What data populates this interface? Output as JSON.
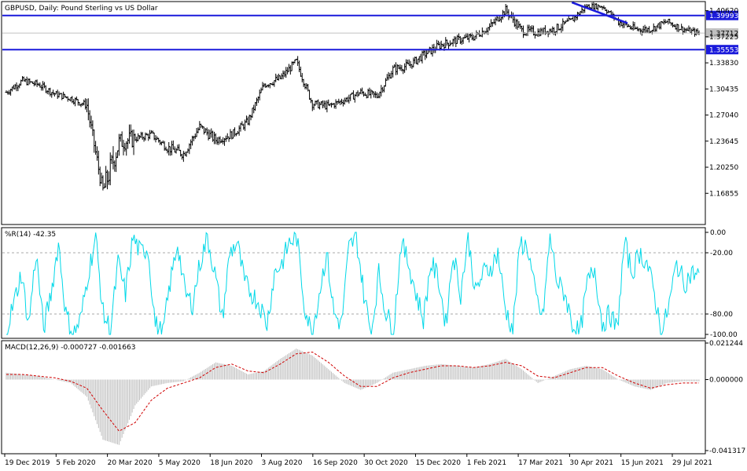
{
  "chart_data": [
    {
      "type": "candlestick",
      "title": "GBPUSD, Daily:  Pound Sterling vs US Dollar",
      "ylim": [
        1.13,
        1.416
      ],
      "y_ticks": [
        "1.40620",
        "1.37225",
        "1.33830",
        "1.30435",
        "1.27040",
        "1.23645",
        "1.20250",
        "1.16855"
      ],
      "horizontal_lines": [
        {
          "label": "1.39993",
          "value": 1.39993,
          "color": "#1a1adb"
        },
        {
          "label": "1.35553",
          "value": 1.35553,
          "color": "#1a1adb"
        }
      ],
      "current_price": {
        "label": "1.37712",
        "value": 1.37712
      },
      "trend_line": {
        "from": {
          "date": "2021-04-30",
          "value": 1.417
        },
        "to": {
          "date": "2021-06-18",
          "value": 1.39
        },
        "color": "#1a1adb"
      },
      "x": [
        "2019-12-19",
        "2020-01-02",
        "2020-01-16",
        "2020-02-05",
        "2020-02-19",
        "2020-03-05",
        "2020-03-19",
        "2020-03-26",
        "2020-04-09",
        "2020-04-23",
        "2020-05-05",
        "2020-05-19",
        "2020-06-01",
        "2020-06-18",
        "2020-07-02",
        "2020-07-16",
        "2020-08-03",
        "2020-08-17",
        "2020-08-31",
        "2020-09-08",
        "2020-09-16",
        "2020-09-30",
        "2020-10-14",
        "2020-10-30",
        "2020-11-13",
        "2020-11-27",
        "2020-12-15",
        "2020-12-29",
        "2021-01-12",
        "2021-01-26",
        "2021-02-05",
        "2021-02-24",
        "2021-03-17",
        "2021-03-31",
        "2021-04-14",
        "2021-04-30",
        "2021-05-14",
        "2021-05-28",
        "2021-06-15",
        "2021-06-29",
        "2021-07-13",
        "2021-07-29",
        "2021-08-12",
        "2021-08-20"
      ],
      "close": [
        1.3,
        1.315,
        1.31,
        1.298,
        1.292,
        1.283,
        1.17,
        1.235,
        1.24,
        1.245,
        1.228,
        1.22,
        1.255,
        1.238,
        1.245,
        1.262,
        1.31,
        1.318,
        1.34,
        1.285,
        1.282,
        1.29,
        1.3,
        1.295,
        1.33,
        1.335,
        1.35,
        1.362,
        1.368,
        1.372,
        1.385,
        1.407,
        1.38,
        1.378,
        1.382,
        1.392,
        1.412,
        1.412,
        1.392,
        1.382,
        1.382,
        1.392,
        1.382,
        1.377
      ],
      "high": [
        1.316,
        1.325,
        1.32,
        1.31,
        1.3,
        1.3,
        1.22,
        1.252,
        1.26,
        1.255,
        1.245,
        1.24,
        1.275,
        1.258,
        1.262,
        1.275,
        1.325,
        1.335,
        1.352,
        1.3,
        1.295,
        1.305,
        1.315,
        1.312,
        1.345,
        1.35,
        1.365,
        1.375,
        1.38,
        1.385,
        1.4,
        1.418,
        1.398,
        1.395,
        1.395,
        1.412,
        1.419,
        1.418,
        1.402,
        1.398,
        1.392,
        1.402,
        1.392,
        1.387
      ],
      "low": [
        1.292,
        1.3,
        1.297,
        1.285,
        1.28,
        1.27,
        1.145,
        1.15,
        1.232,
        1.233,
        1.212,
        1.205,
        1.24,
        1.225,
        1.232,
        1.248,
        1.296,
        1.306,
        1.325,
        1.27,
        1.27,
        1.28,
        1.288,
        1.282,
        1.315,
        1.322,
        1.335,
        1.345,
        1.352,
        1.358,
        1.37,
        1.392,
        1.365,
        1.368,
        1.37,
        1.38,
        1.402,
        1.4,
        1.38,
        1.365,
        1.37,
        1.378,
        1.37,
        1.368
      ],
      "xlabels": [
        "19 Dec 2019",
        "5 Feb 2020",
        "20 Mar 2020",
        "5 May 2020",
        "18 Jun 2020",
        "3 Aug 2020",
        "16 Sep 2020",
        "30 Oct 2020",
        "15 Dec 2020",
        "1 Feb 2021",
        "17 Mar 2021",
        "30 Apr 2021",
        "15 Jun 2021",
        "29 Jul 2021"
      ]
    },
    {
      "type": "line",
      "title": "%R(14) -42.35",
      "ylim": [
        -100,
        0
      ],
      "y_ticks": [
        "0.00",
        "-20.00",
        "-80.00",
        "-100.00"
      ],
      "levels": [
        -20,
        -80
      ],
      "series": [
        {
          "color": "#00d8e8",
          "values": [
            -95,
            -70,
            -40,
            -90,
            -20,
            -95,
            -60,
            -10,
            -80,
            -100,
            -85,
            -40,
            -5,
            -80,
            -95,
            -30,
            -60,
            -5,
            -20,
            -15,
            -90,
            -100,
            -50,
            -10,
            -60,
            -70,
            -30,
            -5,
            -40,
            -85,
            -20,
            -10,
            -50,
            -60,
            -70,
            -90,
            -40,
            -30,
            -10,
            -5,
            -70,
            -100,
            -60,
            -20,
            -80,
            -90,
            -15,
            -5,
            -60,
            -100,
            -40,
            -80,
            -95,
            -10,
            -30,
            -60,
            -85,
            -30,
            -45,
            -90,
            -20,
            -60,
            -5,
            -60,
            -40,
            -35,
            -20,
            -75,
            -95,
            -10,
            -15,
            -60,
            -85,
            -5,
            -50,
            -60,
            -90,
            -100,
            -50,
            -35,
            -90,
            -80,
            -95,
            -10,
            -40,
            -20,
            -30,
            -60,
            -100,
            -70,
            -30,
            -50,
            -40,
            -42
          ]
        }
      ]
    },
    {
      "type": "histogram+line",
      "title": "MACD(12,26,9) -0.000727 -0.001663",
      "ylim": [
        -0.041317,
        0.021244
      ],
      "y_ticks": [
        "0.021244",
        "0.000000",
        "-0.041317"
      ],
      "series": [
        {
          "name": "MACD",
          "color": "#bdbdbd",
          "values": [
            0.004,
            0.003,
            0.002,
            0.0,
            -0.002,
            -0.01,
            -0.035,
            -0.038,
            -0.015,
            -0.004,
            -0.002,
            -0.001,
            0.004,
            0.01,
            0.008,
            0.003,
            0.005,
            0.012,
            0.018,
            0.014,
            0.006,
            -0.002,
            -0.006,
            -0.002,
            0.004,
            0.006,
            0.008,
            0.009,
            0.008,
            0.007,
            0.009,
            0.012,
            0.006,
            -0.002,
            0.002,
            0.006,
            0.008,
            0.006,
            0.0,
            -0.004,
            -0.006,
            -0.002,
            -0.001,
            -0.001
          ]
        },
        {
          "name": "Signal",
          "color": "#d00000",
          "values": [
            0.003,
            0.003,
            0.002,
            0.001,
            -0.001,
            -0.005,
            -0.018,
            -0.03,
            -0.025,
            -0.012,
            -0.005,
            -0.002,
            0.001,
            0.007,
            0.009,
            0.005,
            0.004,
            0.009,
            0.015,
            0.016,
            0.01,
            0.002,
            -0.004,
            -0.004,
            0.001,
            0.004,
            0.006,
            0.008,
            0.008,
            0.007,
            0.008,
            0.01,
            0.008,
            0.002,
            0.001,
            0.004,
            0.007,
            0.007,
            0.002,
            -0.002,
            -0.005,
            -0.003,
            -0.002,
            -0.002
          ]
        }
      ]
    }
  ]
}
